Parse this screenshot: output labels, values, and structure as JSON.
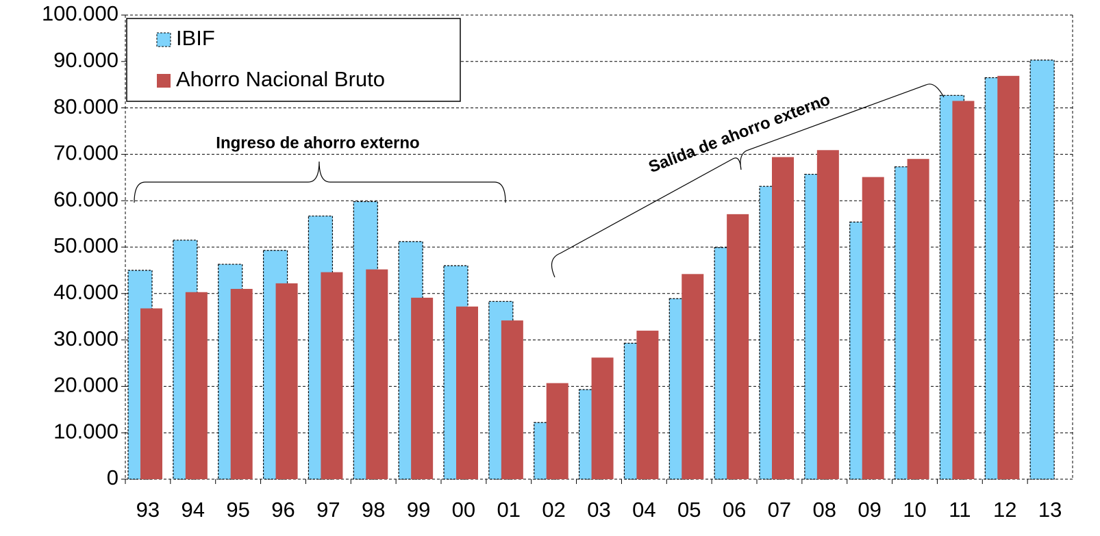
{
  "chart_data": {
    "type": "bar",
    "categories": [
      "93",
      "94",
      "95",
      "96",
      "97",
      "98",
      "99",
      "00",
      "01",
      "02",
      "03",
      "04",
      "05",
      "06",
      "07",
      "08",
      "09",
      "10",
      "11",
      "12",
      "13"
    ],
    "series": [
      {
        "name": "IBIF",
        "color": "#7fd3fb",
        "values": [
          45000,
          51500,
          46300,
          49300,
          56700,
          59800,
          51200,
          46000,
          38300,
          12200,
          19300,
          29300,
          38900,
          49900,
          63100,
          65700,
          55400,
          67300,
          82700,
          86500,
          90300
        ]
      },
      {
        "name": "Ahorro Nacional Bruto",
        "color": "#c0504d",
        "values": [
          36800,
          40300,
          41000,
          42200,
          44600,
          45200,
          39100,
          37200,
          34200,
          20700,
          26200,
          32000,
          44200,
          57100,
          69400,
          70900,
          65100,
          69000,
          81500,
          86900,
          null
        ]
      }
    ],
    "ylim": [
      0,
      100000
    ],
    "yticks": [
      0,
      {
        "value": 10000,
        "label": "10.000"
      },
      {
        "value": 20000,
        "label": "20.000"
      },
      {
        "value": 30000,
        "label": "30.000"
      },
      {
        "value": 40000,
        "label": "40.000"
      },
      {
        "value": 50000,
        "label": "50.000"
      },
      {
        "value": 60000,
        "label": "60.000"
      },
      {
        "value": 70000,
        "label": "70.000"
      },
      {
        "value": 80000,
        "label": "80.000"
      },
      {
        "value": 90000,
        "label": "90.000"
      },
      {
        "value": 100000,
        "label": "100.000"
      }
    ],
    "grid": true,
    "legend": "upper left",
    "annotations": [
      "Ingreso de ahorro  externo",
      "Salida de ahorro externo"
    ]
  }
}
